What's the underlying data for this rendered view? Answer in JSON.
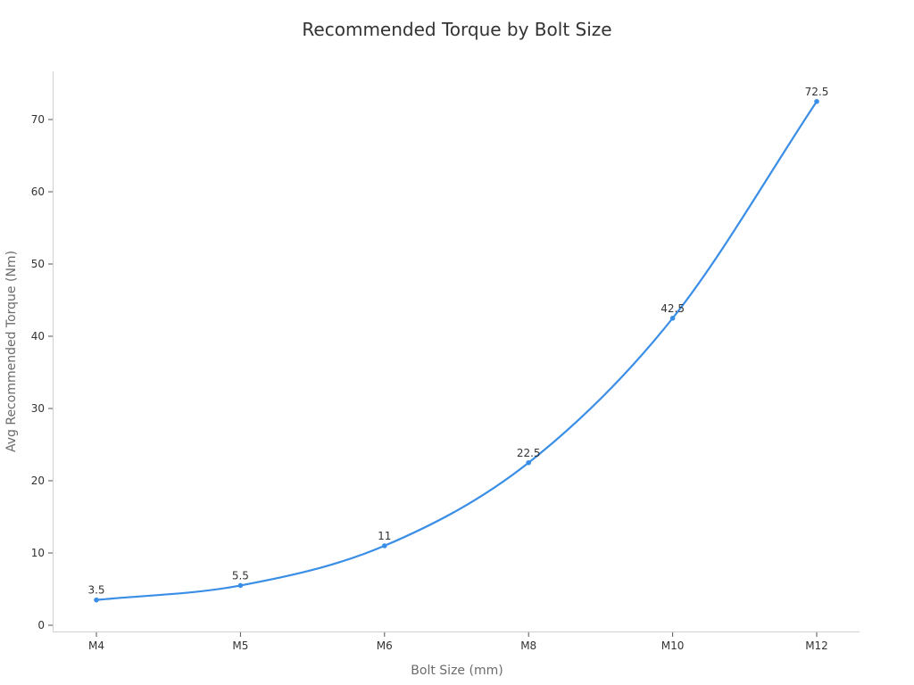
{
  "chart_data": {
    "type": "line",
    "title": "Recommended Torque by Bolt Size",
    "xlabel": "Bolt Size (mm)",
    "ylabel": "Avg Recommended Torque (Nm)",
    "categories": [
      "M4",
      "M5",
      "M6",
      "M8",
      "M10",
      "M12"
    ],
    "series": [
      {
        "name": "Avg Recommended Torque (Nm)",
        "values": [
          3.5,
          5.5,
          11,
          22.5,
          42.5,
          72.5
        ],
        "color": "#3a8ee6",
        "smooth": true,
        "show_markers": true,
        "show_data_labels": true
      }
    ],
    "data_labels": [
      "3.5",
      "5.5",
      "11",
      "22.5",
      "42.5",
      "72.5"
    ],
    "ylim": [
      0,
      77
    ],
    "yticks": [
      0,
      10,
      20,
      30,
      40,
      50,
      60,
      70
    ],
    "ytick_labels": [
      "0",
      "10",
      "20",
      "30",
      "40",
      "50",
      "60",
      "70"
    ],
    "grid": false,
    "legend": "none"
  }
}
